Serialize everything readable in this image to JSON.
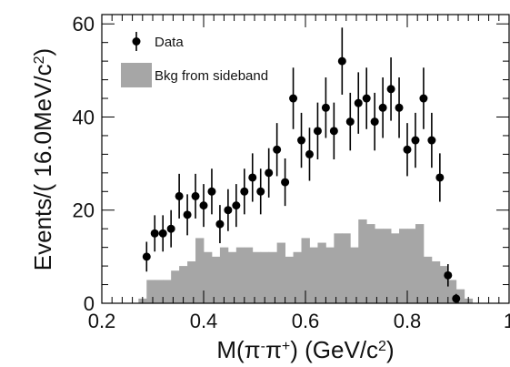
{
  "chart_data": {
    "type": "scatter",
    "xlabel_parts": [
      "M(π",
      "-",
      "π",
      "+",
      ") (GeV/c",
      "2",
      ")"
    ],
    "ylabel_parts": [
      "Events/( 16.0MeV/c",
      "2",
      ")"
    ],
    "xlim": [
      0.2,
      1.0
    ],
    "ylim": [
      0,
      62
    ],
    "x_ticks": [
      0.2,
      0.4,
      0.6,
      0.8,
      1.0
    ],
    "x_tick_labels": [
      "0.2",
      "0.4",
      "0.6",
      "0.8",
      "1"
    ],
    "y_ticks": [
      0,
      20,
      40,
      60
    ],
    "y_tick_labels": [
      "0",
      "20",
      "40",
      "60"
    ],
    "grid": false,
    "legend_position": "top-left",
    "series": [
      {
        "name": "Data",
        "kind": "points-with-errorbars",
        "color": "#000000",
        "points": [
          {
            "x": 0.288,
            "y": 10,
            "err": 3.2
          },
          {
            "x": 0.304,
            "y": 15,
            "err": 3.9
          },
          {
            "x": 0.32,
            "y": 15,
            "err": 3.9
          },
          {
            "x": 0.336,
            "y": 16,
            "err": 4.0
          },
          {
            "x": 0.352,
            "y": 23,
            "err": 4.8
          },
          {
            "x": 0.368,
            "y": 19,
            "err": 4.4
          },
          {
            "x": 0.384,
            "y": 23,
            "err": 4.8
          },
          {
            "x": 0.4,
            "y": 21,
            "err": 4.6
          },
          {
            "x": 0.416,
            "y": 24,
            "err": 4.9
          },
          {
            "x": 0.432,
            "y": 17,
            "err": 4.1
          },
          {
            "x": 0.448,
            "y": 20,
            "err": 4.5
          },
          {
            "x": 0.464,
            "y": 21,
            "err": 4.6
          },
          {
            "x": 0.48,
            "y": 24,
            "err": 4.9
          },
          {
            "x": 0.496,
            "y": 27,
            "err": 5.2
          },
          {
            "x": 0.512,
            "y": 24,
            "err": 4.9
          },
          {
            "x": 0.528,
            "y": 28,
            "err": 5.3
          },
          {
            "x": 0.544,
            "y": 33,
            "err": 5.7
          },
          {
            "x": 0.56,
            "y": 26,
            "err": 5.1
          },
          {
            "x": 0.576,
            "y": 44,
            "err": 6.6
          },
          {
            "x": 0.592,
            "y": 35,
            "err": 5.9
          },
          {
            "x": 0.608,
            "y": 32,
            "err": 5.7
          },
          {
            "x": 0.624,
            "y": 37,
            "err": 6.1
          },
          {
            "x": 0.64,
            "y": 42,
            "err": 6.5
          },
          {
            "x": 0.656,
            "y": 37,
            "err": 6.1
          },
          {
            "x": 0.672,
            "y": 52,
            "err": 7.2
          },
          {
            "x": 0.688,
            "y": 39,
            "err": 6.2
          },
          {
            "x": 0.704,
            "y": 43,
            "err": 6.6
          },
          {
            "x": 0.72,
            "y": 44,
            "err": 6.6
          },
          {
            "x": 0.736,
            "y": 39,
            "err": 6.2
          },
          {
            "x": 0.752,
            "y": 42,
            "err": 6.5
          },
          {
            "x": 0.768,
            "y": 46,
            "err": 6.8
          },
          {
            "x": 0.784,
            "y": 42,
            "err": 6.5
          },
          {
            "x": 0.8,
            "y": 33,
            "err": 5.7
          },
          {
            "x": 0.816,
            "y": 35,
            "err": 5.9
          },
          {
            "x": 0.832,
            "y": 44,
            "err": 6.6
          },
          {
            "x": 0.848,
            "y": 35,
            "err": 5.9
          },
          {
            "x": 0.864,
            "y": 27,
            "err": 5.2
          },
          {
            "x": 0.88,
            "y": 6,
            "err": 2.4
          },
          {
            "x": 0.896,
            "y": 1,
            "err": 1.0
          }
        ]
      },
      {
        "name": "Bkg from sideband",
        "kind": "filled-histogram",
        "color": "#a6a6a6",
        "bin_edges": [
          0.272,
          0.288,
          0.304,
          0.32,
          0.336,
          0.352,
          0.368,
          0.384,
          0.4,
          0.416,
          0.432,
          0.448,
          0.464,
          0.48,
          0.496,
          0.512,
          0.528,
          0.544,
          0.56,
          0.576,
          0.592,
          0.608,
          0.624,
          0.64,
          0.656,
          0.672,
          0.688,
          0.704,
          0.72,
          0.736,
          0.752,
          0.768,
          0.784,
          0.8,
          0.816,
          0.832,
          0.848,
          0.864,
          0.88,
          0.896,
          0.912,
          0.928
        ],
        "values": [
          1,
          5,
          5,
          5,
          7,
          8,
          9,
          14,
          11,
          10,
          12,
          11,
          12,
          12,
          11,
          11,
          11,
          13,
          10,
          11,
          14,
          12,
          13,
          12,
          15,
          15,
          12,
          18,
          17,
          16,
          16,
          15,
          16,
          16,
          17,
          10,
          9,
          8,
          5,
          3,
          1
        ]
      }
    ]
  }
}
